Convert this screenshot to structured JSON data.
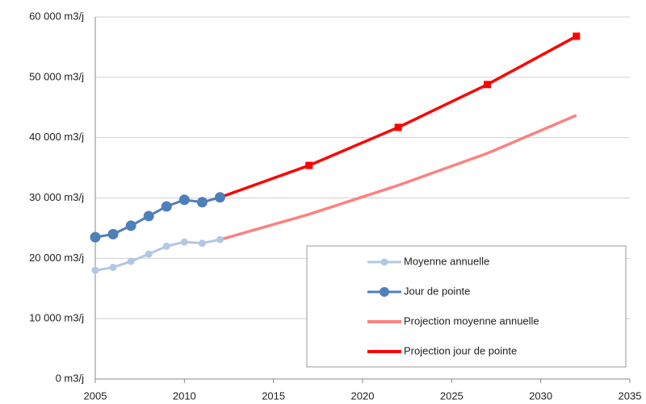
{
  "chart_data": {
    "type": "line",
    "xlim": [
      2005,
      2035
    ],
    "xticks": [
      2005,
      2010,
      2015,
      2020,
      2025,
      2030,
      2035
    ],
    "ylim": [
      0,
      60000
    ],
    "yticks": [
      {
        "value": 0,
        "label": "0 m3/j"
      },
      {
        "value": 10000,
        "label": "10 000 m3/j"
      },
      {
        "value": 20000,
        "label": "20 000 m3/j"
      },
      {
        "value": 30000,
        "label": "30 000 m3/j"
      },
      {
        "value": 40000,
        "label": "40 000 m3/j"
      },
      {
        "value": 50000,
        "label": "50 000 m3/j"
      },
      {
        "value": 60000,
        "label": "60 000 m3/j"
      }
    ],
    "grid": true,
    "legend": "bottom right",
    "series": [
      {
        "name": "Moyenne annuelle",
        "color": "#b3c7e3",
        "marker": "circle",
        "x": [
          2005,
          2006,
          2007,
          2008,
          2009,
          2010,
          2011,
          2012
        ],
        "values": [
          18000,
          18500,
          19500,
          20700,
          22000,
          22700,
          22500,
          23100
        ]
      },
      {
        "name": "Jour de pointe",
        "color": "#4f7fba",
        "marker": "circle",
        "x": [
          2005,
          2006,
          2007,
          2008,
          2009,
          2010,
          2011,
          2012
        ],
        "values": [
          23500,
          24000,
          25400,
          27000,
          28600,
          29700,
          29300,
          30100
        ]
      },
      {
        "name": "Projection moyenne annuelle",
        "color": "#ff8080",
        "marker": "none",
        "x": [
          2012,
          2017,
          2022,
          2027,
          2032
        ],
        "values": [
          23100,
          27300,
          32100,
          37400,
          43700
        ]
      },
      {
        "name": "Projection jour de pointe",
        "color": "#ff0000",
        "marker": "square",
        "x": [
          2012,
          2017,
          2022,
          2027,
          2032
        ],
        "values": [
          30100,
          35400,
          41700,
          48800,
          56800
        ]
      }
    ]
  }
}
